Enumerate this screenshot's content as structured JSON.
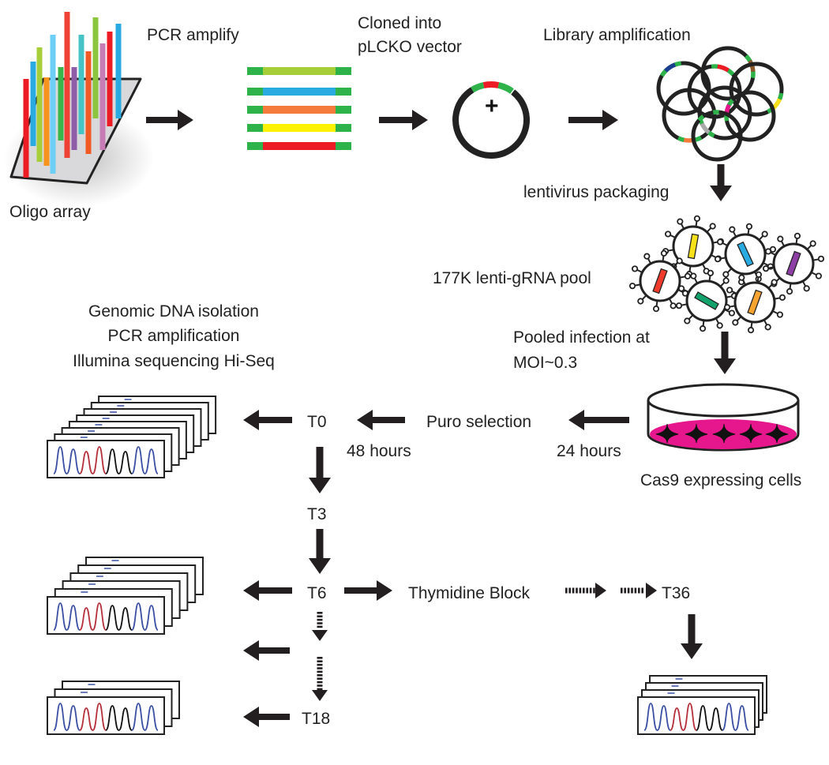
{
  "labels": {
    "oligo_array": "Oligo array",
    "pcr_amplify": "PCR amplify",
    "cloned_line1": "Cloned into",
    "cloned_line2": "pLCKO vector",
    "library_amplification": "Library amplification",
    "lentivirus_packaging": "lentivirus packaging",
    "pool": "177K lenti-gRNA pool",
    "pooled_line1": "Pooled infection at",
    "pooled_line2": "MOI~0.3",
    "genomic_dna": "Genomic DNA isolation",
    "pcr_amplification": "PCR amplification",
    "illumina": "Illumina sequencing Hi-Seq",
    "puro_selection": "Puro selection",
    "hours_24": "24 hours",
    "hours_48": "48 hours",
    "cas9_cells": "Cas9 expressing cells",
    "thymidine_block": "Thymidine Block",
    "t0": "T0",
    "t3": "T3",
    "t6": "T6",
    "t18": "T18",
    "t36": "T36",
    "plus": "+"
  },
  "colors": {
    "arrow": "#231f20",
    "vector_green": "#2db34a",
    "insert_red": "#ed1c24",
    "dish_media": "#e6168c",
    "trace_blue": "#3b4fa3",
    "trace_red": "#b5303a",
    "trace_black": "#111111",
    "insert_colors": [
      "#a6ce39",
      "#29abe2",
      "#f47b3b",
      "#fff200",
      "#ed1c24"
    ],
    "oligo_colors": [
      "#ed1c24",
      "#29abe2",
      "#a6ce39",
      "#f7941d",
      "#6dcff6",
      "#39b54a",
      "#ef4136",
      "#8f5ca8",
      "#45c3c5",
      "#f15a24",
      "#8cc63f",
      "#c77cb5"
    ],
    "library_colors": [
      "#1b3f8f",
      "#ed1c24",
      "#8b5a2b",
      "#f7e11b",
      "#f47b3b",
      "#aaaaaa",
      "#e6168c"
    ],
    "virus_insert_colors": [
      "#ef3b2c",
      "#f7e11b",
      "#29abe2",
      "#8e3fa5",
      "#13a26b",
      "#f7a530"
    ]
  },
  "icons": {
    "arrow": "arrow-icon",
    "oligo_array": "oligo-array-icon",
    "insert": "pcr-insert-icon",
    "vector": "plasmid-vector-icon",
    "library": "plasmid-library-icon",
    "virus": "lentivirus-icon",
    "dish": "petri-dish-icon",
    "trace_stack": "sequencing-trace-stack-icon"
  }
}
